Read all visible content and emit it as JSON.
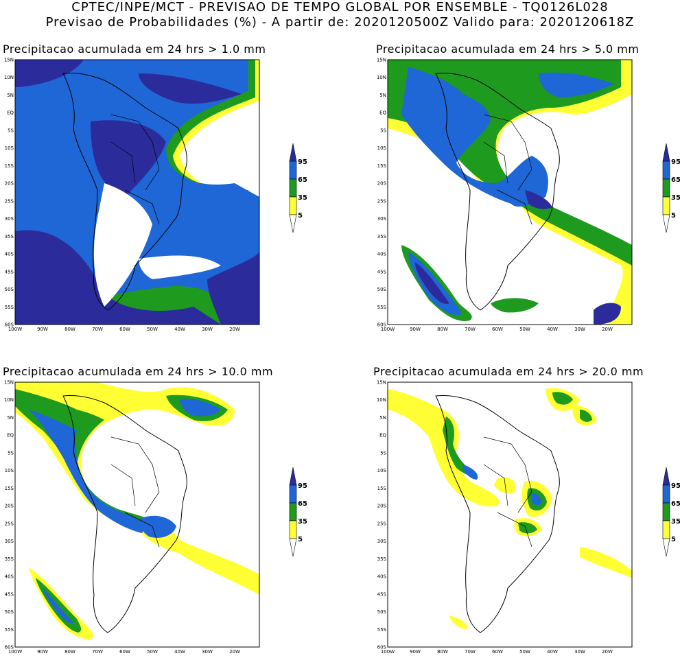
{
  "header": {
    "line1": "CPTEC/INPE/MCT - PREVISAO DE TEMPO GLOBAL POR ENSEMBLE - TQ0126L028",
    "line2": "Previsao de Probabilidades (%) -  A partir de: 2020120500Z  Valido para: 2020120618Z"
  },
  "axes": {
    "lat_labels": [
      "15N",
      "10N",
      "5N",
      "EQ",
      "5S",
      "10S",
      "15S",
      "20S",
      "25S",
      "30S",
      "35S",
      "40S",
      "45S",
      "50S",
      "55S",
      "60S"
    ],
    "lon_labels": [
      "100W",
      "90W",
      "80W",
      "70W",
      "60W",
      "50W",
      "40W",
      "30W",
      "20W"
    ]
  },
  "legend": {
    "levels": [
      "95",
      "65",
      "35",
      "5"
    ],
    "colors": [
      "#2b2b9c",
      "#1f66d6",
      "#1e9a1e",
      "#ffff33",
      "#ffffff"
    ]
  },
  "panels": [
    {
      "title": "Precipitacao acumulada em 24 hrs > 1.0 mm"
    },
    {
      "title": "Precipitacao acumulada em 24 hrs > 5.0 mm"
    },
    {
      "title": "Precipitacao acumulada em 24 hrs > 10.0 mm"
    },
    {
      "title": "Precipitacao acumulada em 24 hrs > 20.0 mm"
    }
  ]
}
